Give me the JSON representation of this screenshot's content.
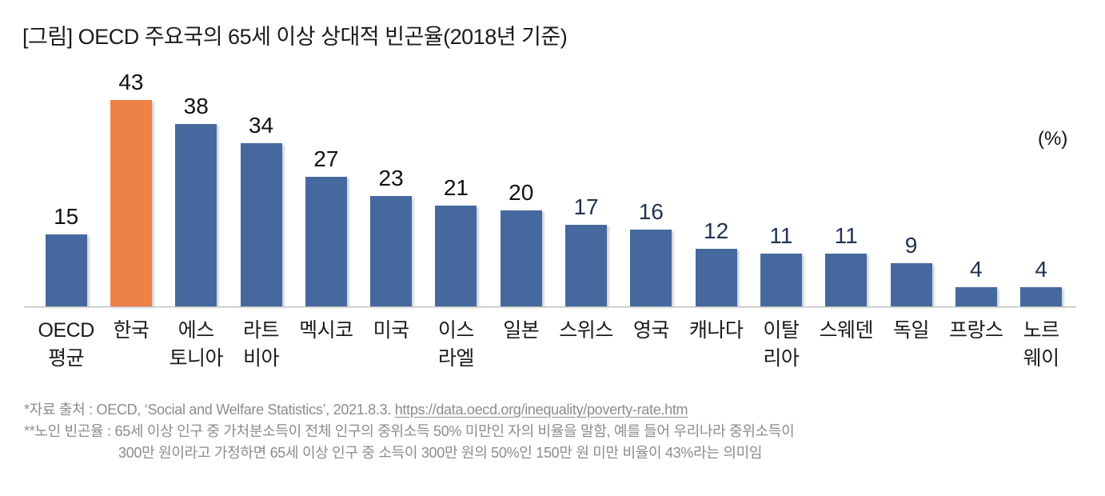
{
  "title": "[그림] OECD 주요국의 65세 이상 상대적 빈곤율(2018년 기준)",
  "unit_label": "(%)",
  "chart_data": {
    "type": "bar",
    "title": "[그림] OECD 주요국의 65세 이상 상대적 빈곤율(2018년 기준)",
    "unit": "%",
    "categories": [
      "OECD 평균",
      "한국",
      "에스토니아",
      "라트비아",
      "멕시코",
      "미국",
      "이스라엘",
      "일본",
      "스위스",
      "영국",
      "캐나다",
      "이탈리아",
      "스웨덴",
      "독일",
      "프랑스",
      "노르웨이"
    ],
    "category_lines": [
      [
        "OECD",
        "평균"
      ],
      [
        "한국"
      ],
      [
        "에스",
        "토니아"
      ],
      [
        "라트",
        "비아"
      ],
      [
        "멕시코"
      ],
      [
        "미국"
      ],
      [
        "이스",
        "라엘"
      ],
      [
        "일본"
      ],
      [
        "스위스"
      ],
      [
        "영국"
      ],
      [
        "캐나다"
      ],
      [
        "이탈",
        "리아"
      ],
      [
        "스웨덴"
      ],
      [
        "독일"
      ],
      [
        "프랑스"
      ],
      [
        "노르",
        "웨이"
      ]
    ],
    "values": [
      15,
      43,
      38,
      34,
      27,
      23,
      21,
      20,
      17,
      16,
      12,
      11,
      11,
      9,
      4,
      4
    ],
    "highlight_index": 1,
    "bar_color": "#45699E",
    "highlight_color": "#ED8146",
    "value_label_colors": [
      "black",
      "black",
      "black",
      "black",
      "black",
      "black",
      "black",
      "black",
      "navy",
      "navy",
      "navy",
      "navy",
      "navy",
      "navy",
      "navy",
      "navy"
    ],
    "label_color_map": {
      "black": "#111111",
      "navy": "#1F3150"
    },
    "axis_color": "#bdbdbd",
    "ylim": [
      0,
      45
    ],
    "grid": false,
    "legend": "none",
    "data_labels": "above-bars"
  },
  "footnotes": {
    "line1_prefix": "*자료 출처 : OECD, ‘Social and Welfare Statistics’, 2021.8.3. ",
    "line1_link": "https://data.oecd.org/inequality/poverty-rate.htm",
    "line2": "**노인 빈곤율 : 65세 이상 인구 중 가처분소득이 전체 인구의 중위소득 50% 미만인 자의 비율을 말함, 예를 들어 우리나라 중위소득이",
    "line3": "300만 원이라고 가정하면 65세 이상 인구 중 소득이 300만 원의 50%인 150만 원 미만 비율이 43%라는 의미임"
  }
}
